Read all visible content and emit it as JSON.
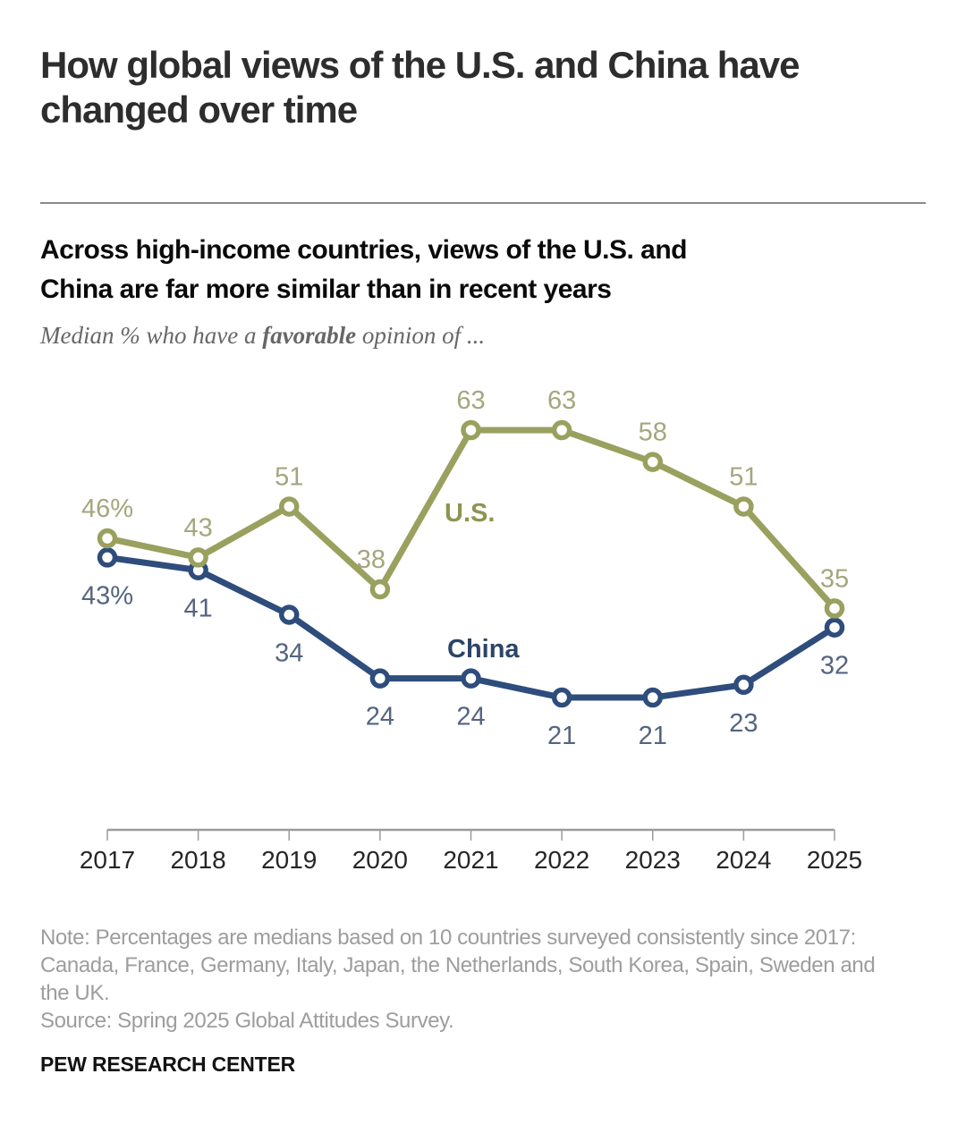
{
  "page": {
    "title_lines": [
      "How global views of the U.S. and China have",
      "changed over time"
    ],
    "brand": "PEW RESEARCH CENTER"
  },
  "chart": {
    "heading_lines": [
      "Across high-income countries, views of the U.S. and",
      "China are far more similar than in recent years"
    ],
    "subtitle_prefix": "Median % who have a ",
    "subtitle_emphasis": "favorable",
    "subtitle_suffix": " opinion of ...",
    "note_lines": [
      "Note: Percentages are medians based on 10 countries surveyed consistently since 2017:",
      "Canada, France, Germany, Italy, Japan, the Netherlands, South Korea, Spain, Sweden and",
      "the UK."
    ],
    "source": "Source: Spring 2025 Global Attitudes Survey."
  },
  "chart_data": {
    "type": "line",
    "x": [
      2017,
      2018,
      2019,
      2020,
      2021,
      2022,
      2023,
      2024,
      2025
    ],
    "series": [
      {
        "name": "U.S.",
        "color": "#9aa05e",
        "label_color": "#a5a67d",
        "name_color": "#8e9450",
        "values": [
          46,
          43,
          51,
          38,
          63,
          63,
          58,
          51,
          35
        ],
        "point_labels": [
          "46%",
          "43",
          "51",
          "38",
          "63",
          "63",
          "58",
          "51",
          "35"
        ]
      },
      {
        "name": "China",
        "color": "#2e4d7c",
        "label_color": "#556480",
        "name_color": "#2b4468",
        "values": [
          43,
          41,
          34,
          24,
          24,
          21,
          21,
          23,
          32
        ],
        "point_labels": [
          "43%",
          "41",
          "34",
          "24",
          "24",
          "21",
          "21",
          "23",
          "32"
        ]
      }
    ],
    "ylim": [
      0,
      100
    ],
    "grid": false,
    "legend": "inline-series-labels",
    "axis_color": "#9b9b9b",
    "year_label_color": "#262626"
  }
}
